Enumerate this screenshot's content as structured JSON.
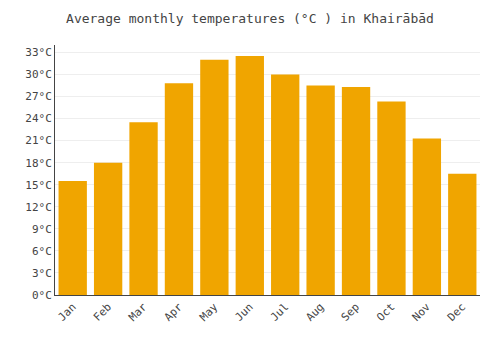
{
  "chart_data": {
    "type": "bar",
    "title": "Average monthly temperatures (°C ) in Khairābād",
    "categories": [
      "Jan",
      "Feb",
      "Mar",
      "Apr",
      "May",
      "Jun",
      "Jul",
      "Aug",
      "Sep",
      "Oct",
      "Nov",
      "Dec"
    ],
    "values": [
      15.5,
      18.0,
      23.5,
      28.8,
      32.0,
      32.5,
      30.0,
      28.5,
      28.3,
      26.3,
      21.3,
      16.5
    ],
    "color": "#F0A500",
    "ylim": [
      0,
      34
    ],
    "yticks": [
      {
        "value": 0,
        "label": "0°C"
      },
      {
        "value": 3,
        "label": "3°C"
      },
      {
        "value": 6,
        "label": "6°C"
      },
      {
        "value": 9,
        "label": "9°C"
      },
      {
        "value": 12,
        "label": "12°C"
      },
      {
        "value": 15,
        "label": "15°C"
      },
      {
        "value": 18,
        "label": "18°C"
      },
      {
        "value": 21,
        "label": "21°C"
      },
      {
        "value": 24,
        "label": "24°C"
      },
      {
        "value": 27,
        "label": "27°C"
      },
      {
        "value": 30,
        "label": "30°C"
      },
      {
        "value": 33,
        "label": "33°C"
      }
    ],
    "grid": true
  }
}
